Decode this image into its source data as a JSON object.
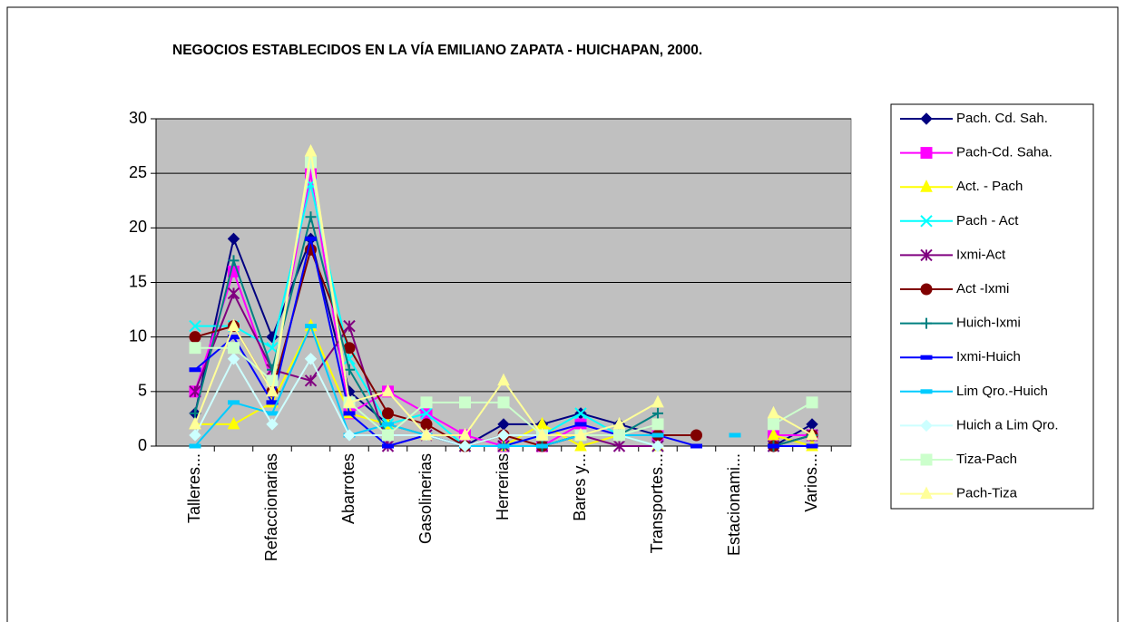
{
  "chart_data": {
    "type": "line",
    "title": "NEGOCIOS ESTABLECIDOS EN LA VÍA EMILIANO ZAPATA - HUICHAPAN, 2000.",
    "categories": [
      "Talleres...",
      null,
      "Refaccionarias",
      null,
      "Abarrotes",
      null,
      "Gasolinerias",
      null,
      "Herrerias",
      null,
      "Bares y...",
      null,
      "Transportes...",
      null,
      "Estacionami...",
      null,
      "Varios..."
    ],
    "ylim": [
      0,
      30
    ],
    "yticks": [
      0,
      5,
      10,
      15,
      20,
      25,
      30
    ],
    "grid": true,
    "legend": "right",
    "series": [
      {
        "name": "Pach. Cd. Sah.",
        "color": "#000080",
        "marker": "diamond",
        "values": [
          3,
          19,
          10,
          19,
          5,
          2,
          1,
          0,
          2,
          2,
          3,
          2,
          1,
          null,
          null,
          0,
          2
        ]
      },
      {
        "name": "Pach-Cd. Saha.",
        "color": "#ff00ff",
        "marker": "square",
        "values": [
          5,
          16,
          6,
          25,
          3,
          5,
          3,
          1,
          0,
          0,
          2,
          1,
          1,
          null,
          null,
          1,
          1
        ]
      },
      {
        "name": "Act. - Pach",
        "color": "#ffff00",
        "marker": "triangle",
        "values": [
          2,
          2,
          4,
          11,
          3,
          2,
          1,
          0,
          0,
          2,
          0,
          1,
          0,
          null,
          null,
          1,
          0
        ]
      },
      {
        "name": "Pach - Act",
        "color": "#00ffff",
        "marker": "x",
        "values": [
          11,
          11,
          9,
          24,
          8,
          2,
          3,
          0,
          0,
          1,
          3,
          1,
          0,
          null,
          null,
          0,
          1
        ]
      },
      {
        "name": "Ixmi-Act",
        "color": "#800080",
        "marker": "star",
        "values": [
          5,
          14,
          7,
          6,
          11,
          0,
          1,
          0,
          0,
          0,
          1,
          0,
          0,
          null,
          null,
          0,
          1
        ]
      },
      {
        "name": "Act -Ixmi",
        "color": "#800000",
        "marker": "circle",
        "values": [
          10,
          11,
          5,
          18,
          9,
          3,
          2,
          0,
          1,
          0,
          1,
          1,
          1,
          1,
          null,
          0,
          1
        ]
      },
      {
        "name": "Huich-Ixmi",
        "color": "#008080",
        "marker": "plus",
        "values": [
          3,
          17,
          7,
          21,
          7,
          1,
          1,
          0,
          0,
          0,
          1,
          1,
          3,
          null,
          null,
          0,
          1
        ]
      },
      {
        "name": "Ixmi-Huich",
        "color": "#0000ff",
        "marker": "dash",
        "values": [
          7,
          10,
          4,
          19,
          3,
          0,
          1,
          0,
          0,
          1,
          2,
          1,
          1,
          0,
          null,
          0,
          0
        ]
      },
      {
        "name": "Lim Qro.-Huich",
        "color": "#00ccff",
        "marker": "dash",
        "values": [
          0,
          4,
          3,
          11,
          1,
          2,
          1,
          0,
          0,
          0,
          1,
          1,
          1,
          null,
          1,
          null,
          null
        ]
      },
      {
        "name": "Huich a Lim Qro.",
        "color": "#ccffff",
        "marker": "diamond",
        "values": [
          1,
          8,
          2,
          8,
          1,
          1,
          1,
          0,
          1,
          1,
          1,
          1,
          0,
          null,
          null,
          null,
          null
        ]
      },
      {
        "name": "Tiza-Pach",
        "color": "#ccffcc",
        "marker": "square",
        "values": [
          9,
          9,
          6,
          26,
          4,
          1,
          4,
          4,
          4,
          1,
          1,
          1,
          2,
          null,
          null,
          2,
          4
        ]
      },
      {
        "name": "Pach-Tiza",
        "color": "#ffff99",
        "marker": "triangle",
        "values": [
          2,
          11,
          5,
          27,
          4,
          5,
          1,
          1,
          6,
          1,
          1,
          2,
          4,
          null,
          null,
          3,
          1
        ]
      }
    ]
  }
}
